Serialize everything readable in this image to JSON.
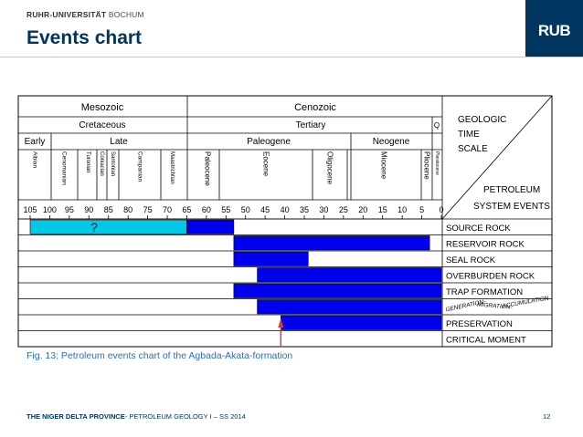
{
  "header": {
    "university_bold": "RUHR-UNIVERSITÄT",
    "university_rest": "BOCHUM",
    "page_title": "Events chart",
    "logo_text": "RUB"
  },
  "chart": {
    "eras": [
      "Mesozoic",
      "Cenozoic"
    ],
    "periods": [
      "Cretaceous",
      "Tertiary",
      "Q"
    ],
    "epochs_row": [
      "Early",
      "Late",
      "Paleogene",
      "Neogene"
    ],
    "stages": [
      "Albian",
      "Cenomanian",
      "Turonian",
      "Coniacian",
      "Santonian",
      "Campanian",
      "Maastrichtian",
      "Paleocene",
      "Eocene",
      "Oligocene",
      "Miocene",
      "Pliocene",
      "Pleistocene"
    ],
    "scale_ticks": [
      "105",
      "100",
      "95",
      "90",
      "85",
      "80",
      "75",
      "70",
      "65",
      "60",
      "55",
      "50",
      "45",
      "40",
      "35",
      "30",
      "25",
      "20",
      "15",
      "10",
      "5",
      "0"
    ],
    "corner_top": [
      "GEOLOGIC",
      "TIME",
      "SCALE"
    ],
    "corner_bottom": [
      "PETROLEUM",
      "SYSTEM EVENTS"
    ],
    "question_mark": "?",
    "events": [
      {
        "label": "SOURCE ROCK",
        "bars": [
          {
            "from": 105,
            "to": 65,
            "color": "#00c8e6"
          },
          {
            "from": 65,
            "to": 53,
            "color": "#0000ee"
          }
        ]
      },
      {
        "label": "RESERVOIR ROCK",
        "bars": [
          {
            "from": 53,
            "to": 3,
            "color": "#0000ee"
          }
        ]
      },
      {
        "label": "SEAL ROCK",
        "bars": [
          {
            "from": 53,
            "to": 34,
            "color": "#0000ee"
          }
        ]
      },
      {
        "label": "OVERBURDEN ROCK",
        "bars": [
          {
            "from": 47,
            "to": 0,
            "color": "#0000ee"
          }
        ]
      },
      {
        "label": "TRAP FORMATION",
        "bars": [
          {
            "from": 53,
            "to": 0,
            "color": "#0000ee"
          }
        ]
      },
      {
        "label": "GENERATION-MIGRATION-ACCUMULATION",
        "bars": [
          {
            "from": 47,
            "to": 0,
            "color": "#0000ee"
          }
        ]
      },
      {
        "label": "PRESERVATION",
        "bars": [
          {
            "from": 41,
            "to": 0,
            "color": "#0000ee"
          }
        ]
      },
      {
        "label": "CRITICAL MOMENT",
        "bars": []
      }
    ],
    "gma_parts": [
      "GENERATION",
      "MIGRATION",
      "ACCUMULATION"
    ],
    "critical_moment_age": 41,
    "arrow_color": "#d43a3a"
  },
  "caption": "Fig. 13: Petroleum events chart of the Agbada-Akata-formation",
  "footer": {
    "left_bold": "THE NIGER DELTA PROVINCE",
    "left_rest": "- PETROLEUM GEOLOGY I – SS 2014",
    "page_number": "12"
  }
}
